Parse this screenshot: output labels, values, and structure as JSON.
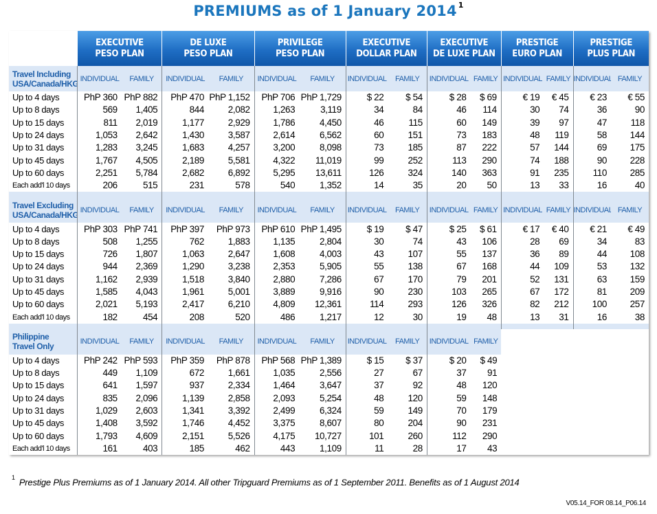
{
  "title": "PREMIUMS as of 1 January 2014",
  "title_note": "1",
  "plans": [
    {
      "l1": "EXECUTIVE",
      "l2": "PESO PLAN"
    },
    {
      "l1": "DE LUXE",
      "l2": "PESO PLAN"
    },
    {
      "l1": "PRIVILEGE",
      "l2": "PESO PLAN"
    },
    {
      "l1": "EXECUTIVE",
      "l2": "DOLLAR PLAN"
    },
    {
      "l1": "EXECUTIVE",
      "l2": "DE LUXE PLAN"
    },
    {
      "l1": "PRESTIGE",
      "l2": "EURO PLAN"
    },
    {
      "l1": "PRESTIGE",
      "l2": "PLUS PLAN"
    }
  ],
  "col_individual": "INDIVIDUAL",
  "col_family": "FAMILY",
  "sections": [
    {
      "label_l1": "Travel Including",
      "label_l2": "USA/Canada/HKG",
      "rows": [
        [
          "Up to 4 days",
          "PhP 360",
          "PhP 882",
          "PhP 470",
          "PhP 1,152",
          "PhP 706",
          "PhP 1,729",
          "$ 22",
          "$ 54",
          "$ 28",
          "$ 69",
          "€ 19",
          "€ 45",
          "€ 23",
          "€ 55"
        ],
        [
          "Up to 8 days",
          "569",
          "1,405",
          "844",
          "2,082",
          "1,263",
          "3,119",
          "34",
          "84",
          "46",
          "114",
          "30",
          "74",
          "36",
          "90"
        ],
        [
          "Up to 15 days",
          "811",
          "2,019",
          "1,177",
          "2,929",
          "1,786",
          "4,450",
          "46",
          "115",
          "60",
          "149",
          "39",
          "97",
          "47",
          "118"
        ],
        [
          "Up to 24 days",
          "1,053",
          "2,642",
          "1,430",
          "3,587",
          "2,614",
          "6,562",
          "60",
          "151",
          "73",
          "183",
          "48",
          "119",
          "58",
          "144"
        ],
        [
          "Up to 31 days",
          "1,283",
          "3,245",
          "1,683",
          "4,257",
          "3,200",
          "8,098",
          "73",
          "185",
          "87",
          "222",
          "57",
          "144",
          "69",
          "175"
        ],
        [
          "Up to 45 days",
          "1,767",
          "4,505",
          "2,189",
          "5,581",
          "4,322",
          "11,019",
          "99",
          "252",
          "113",
          "290",
          "74",
          "188",
          "90",
          "228"
        ],
        [
          "Up to 60 days",
          "2,251",
          "5,784",
          "2,682",
          "6,892",
          "5,295",
          "13,611",
          "126",
          "324",
          "140",
          "363",
          "91",
          "235",
          "110",
          "285"
        ],
        [
          "Each add'l 10 days",
          "206",
          "515",
          "231",
          "578",
          "540",
          "1,352",
          "14",
          "35",
          "20",
          "50",
          "13",
          "33",
          "16",
          "40"
        ]
      ]
    },
    {
      "label_l1": "Travel Excluding",
      "label_l2": "USA/Canada/HKG",
      "rows": [
        [
          "Up to 4 days",
          "PhP 303",
          "PhP 741",
          "PhP 397",
          "PhP 973",
          "PhP 610",
          "PhP 1,495",
          "$ 19",
          "$ 47",
          "$ 25",
          "$ 61",
          "€ 17",
          "€ 40",
          "€ 21",
          "€ 49"
        ],
        [
          "Up to 8 days",
          "508",
          "1,255",
          "762",
          "1,883",
          "1,135",
          "2,804",
          "30",
          "74",
          "43",
          "106",
          "28",
          "69",
          "34",
          "83"
        ],
        [
          "Up to 15 days",
          "726",
          "1,807",
          "1,063",
          "2,647",
          "1,608",
          "4,003",
          "43",
          "107",
          "55",
          "137",
          "36",
          "89",
          "44",
          "108"
        ],
        [
          "Up to 24 days",
          "944",
          "2,369",
          "1,290",
          "3,238",
          "2,353",
          "5,905",
          "55",
          "138",
          "67",
          "168",
          "44",
          "109",
          "53",
          "132"
        ],
        [
          "Up to 31 days",
          "1,162",
          "2,939",
          "1,518",
          "3,840",
          "2,880",
          "7,286",
          "67",
          "170",
          "79",
          "201",
          "52",
          "131",
          "63",
          "159"
        ],
        [
          "Up to 45 days",
          "1,585",
          "4,043",
          "1,961",
          "5,001",
          "3,889",
          "9,916",
          "90",
          "230",
          "103",
          "265",
          "67",
          "172",
          "81",
          "209"
        ],
        [
          "Up to 60 days",
          "2,021",
          "5,193",
          "2,417",
          "6,210",
          "4,809",
          "12,361",
          "114",
          "293",
          "126",
          "326",
          "82",
          "212",
          "100",
          "257"
        ],
        [
          "Each add'l 10 days",
          "182",
          "454",
          "208",
          "520",
          "486",
          "1,217",
          "12",
          "30",
          "19",
          "48",
          "13",
          "31",
          "16",
          "38"
        ]
      ]
    },
    {
      "label_l1": "Philippine",
      "label_l2": "Travel Only",
      "rows": [
        [
          "Up to 4 days",
          "PhP 242",
          "PhP 593",
          "PhP 359",
          "PhP 878",
          "PhP 568",
          "PhP 1,389",
          "$ 15",
          "$ 37",
          "$ 20",
          "$ 49"
        ],
        [
          "Up to 8 days",
          "449",
          "1,109",
          "672",
          "1,661",
          "1,035",
          "2,556",
          "27",
          "67",
          "37",
          "91"
        ],
        [
          "Up to 15 days",
          "641",
          "1,597",
          "937",
          "2,334",
          "1,464",
          "3,647",
          "37",
          "92",
          "48",
          "120"
        ],
        [
          "Up to 24 days",
          "835",
          "2,096",
          "1,139",
          "2,858",
          "2,093",
          "5,254",
          "48",
          "120",
          "59",
          "148"
        ],
        [
          "Up to 31 days",
          "1,029",
          "2,603",
          "1,341",
          "3,392",
          "2,499",
          "6,324",
          "59",
          "149",
          "70",
          "179"
        ],
        [
          "Up to 45 days",
          "1,408",
          "3,592",
          "1,746",
          "4,452",
          "3,375",
          "8,607",
          "80",
          "204",
          "90",
          "231"
        ],
        [
          "Up to 60 days",
          "1,793",
          "4,609",
          "2,151",
          "5,526",
          "4,175",
          "10,727",
          "101",
          "260",
          "112",
          "290"
        ],
        [
          "Each add'l 10 days",
          "161",
          "403",
          "185",
          "462",
          "443",
          "1,109",
          "11",
          "28",
          "17",
          "43"
        ]
      ]
    }
  ],
  "footnote_mark": "1",
  "footnote": "Prestige Plus Premiums as of 1 January 2014.  All other Tripguard Premiums as of 1 September 2011. Benefits as of 1 August 2014",
  "version": "V05.14_FOR 08.14_P06.14",
  "colors": {
    "title": "#1b76bd",
    "header_top": "#4c9de6",
    "header_bottom": "#0f56a8",
    "section_tint": "#dbe7f6",
    "label_text": "#1f5fa9"
  }
}
